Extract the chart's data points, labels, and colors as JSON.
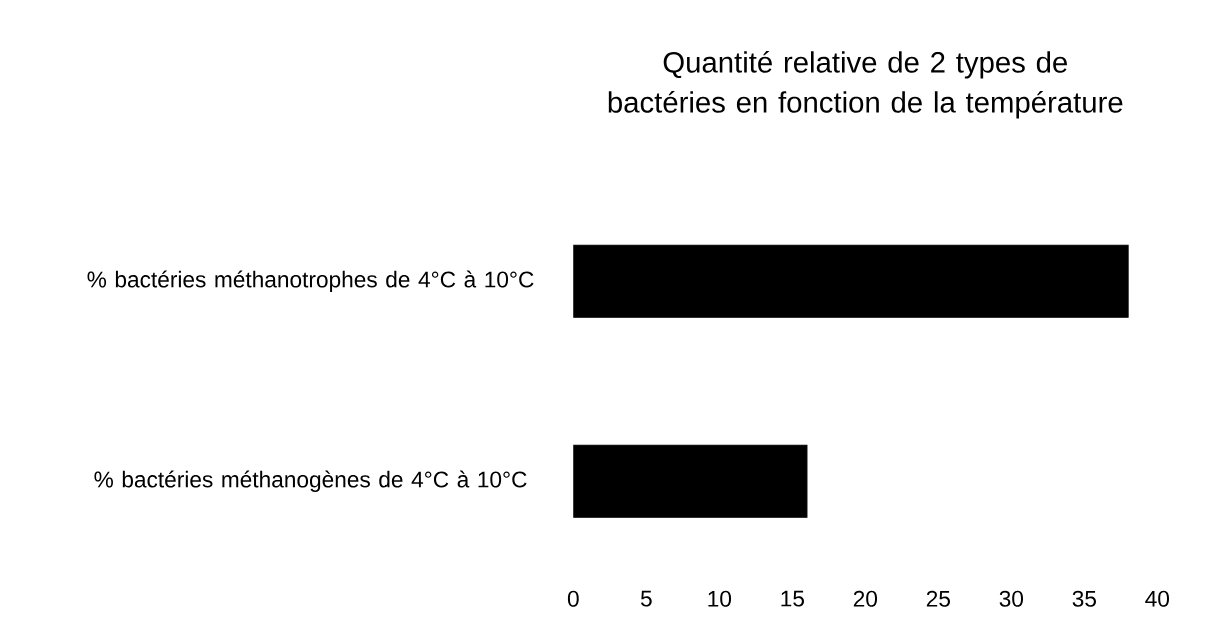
{
  "chart_data": {
    "type": "bar",
    "orientation": "horizontal",
    "title": "Quantité relative de 2 types de bactéries en fonction de la température",
    "categories": [
      "% bactéries méthanotrophes de 4°C à 10°C",
      "% bactéries méthanogènes de 4°C à 10°C"
    ],
    "values": [
      38,
      16
    ],
    "color": "#000000",
    "xlim": [
      0,
      40
    ],
    "xticks": [
      0,
      5,
      10,
      15,
      20,
      25,
      30,
      35,
      40
    ]
  }
}
